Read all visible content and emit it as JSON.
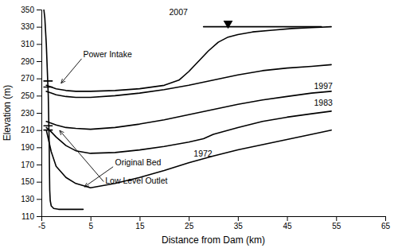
{
  "chart_data": {
    "type": "line",
    "xlabel": "Distance from Dam (km)",
    "ylabel": "Elevation (m)",
    "color": "#000000",
    "grid": false,
    "xlim": [
      -5,
      65
    ],
    "ylim": [
      110,
      350
    ],
    "xticks": [
      -5,
      5,
      15,
      25,
      35,
      45,
      55,
      65
    ],
    "yticks": [
      110,
      130,
      150,
      170,
      190,
      210,
      230,
      250,
      270,
      290,
      310,
      330,
      350
    ],
    "series": [
      {
        "x": [
          -4.5,
          -4.3,
          -4.0,
          -3.8,
          -3.6,
          -3.5,
          -3.4,
          -3.35,
          -3.3,
          -3.2,
          -3.0,
          -2.5,
          -1.5,
          0.0,
          2.0,
          3.5
        ],
        "values": [
          350,
          340,
          310,
          280,
          250,
          220,
          190,
          160,
          140,
          128,
          122,
          119,
          118,
          118,
          118,
          118
        ]
      },
      {
        "x": [
          -4.5,
          -2.8
        ],
        "values": [
          267,
          267
        ]
      },
      {
        "x": [
          -4.5,
          -2.8
        ],
        "values": [
          260,
          260
        ]
      },
      {
        "x": [
          -4.5,
          -2.8
        ],
        "values": [
          215,
          215
        ]
      },
      {
        "x": [
          -4.5,
          -2.8
        ],
        "values": [
          210,
          210
        ]
      },
      {
        "x": [
          -4,
          -3,
          -2,
          0,
          2,
          5,
          10,
          15,
          20,
          25,
          30,
          35,
          40,
          45,
          50,
          54
        ],
        "values": [
          210,
          185,
          168,
          155,
          148,
          143,
          148,
          155,
          163,
          172,
          180,
          187,
          193,
          199,
          205,
          210
        ]
      },
      {
        "x": [
          -4,
          -3,
          -2,
          0,
          2,
          5,
          10,
          15,
          20,
          25,
          28,
          30,
          35,
          40,
          45,
          50,
          54
        ],
        "values": [
          213,
          208,
          202,
          192,
          186,
          183,
          184,
          187,
          191,
          196,
          200,
          205,
          213,
          220,
          225,
          229,
          232
        ]
      },
      {
        "x": [
          -4,
          -3,
          -2,
          0,
          2,
          5,
          10,
          15,
          20,
          25,
          30,
          35,
          40,
          45,
          50,
          54
        ],
        "values": [
          220,
          218,
          216,
          213,
          212,
          211,
          213,
          217,
          222,
          228,
          234,
          240,
          245,
          249,
          253,
          255
        ]
      },
      {
        "x": [
          -4,
          -3,
          -2,
          0,
          2,
          5,
          10,
          15,
          20,
          25,
          30,
          35,
          40,
          45,
          50,
          54
        ],
        "values": [
          255,
          253,
          251,
          249,
          248,
          248,
          250,
          253,
          257,
          262,
          268,
          274,
          279,
          282,
          284,
          286
        ]
      },
      {
        "x": [
          -4,
          -3,
          -2,
          0,
          2,
          5,
          10,
          15,
          20,
          23,
          25,
          27,
          29,
          31,
          33,
          35,
          38,
          42,
          46,
          50,
          54
        ],
        "values": [
          262,
          260,
          258,
          256,
          255,
          255,
          256,
          258,
          262,
          268,
          278,
          290,
          302,
          312,
          318,
          321,
          324,
          326,
          328,
          329,
          330
        ]
      },
      {
        "x": [
          28,
          52
        ],
        "values": [
          330,
          330
        ]
      },
      {
        "x": [
          33
        ],
        "values": [
          334
        ],
        "marker": "triangle-down",
        "line_style": "none"
      }
    ],
    "annotations": [
      {
        "text": "Power Intake",
        "x": 3.5,
        "y": 295,
        "arrow_x": -1.2,
        "arrow_y": 263
      },
      {
        "text": "2007",
        "x": 21,
        "y": 344
      },
      {
        "text": "1997",
        "x": 50.5,
        "y": 258
      },
      {
        "text": "1983",
        "x": 50.5,
        "y": 238
      },
      {
        "text": "1972",
        "x": 26,
        "y": 179
      },
      {
        "text": "Original Bed",
        "x": 10,
        "y": 169,
        "arrow_x": 3.5,
        "arrow_y": 143
      },
      {
        "text": "Low Level Outlet",
        "x": 8,
        "y": 148,
        "arrow_x": -1.5,
        "arrow_y": 211
      }
    ]
  }
}
